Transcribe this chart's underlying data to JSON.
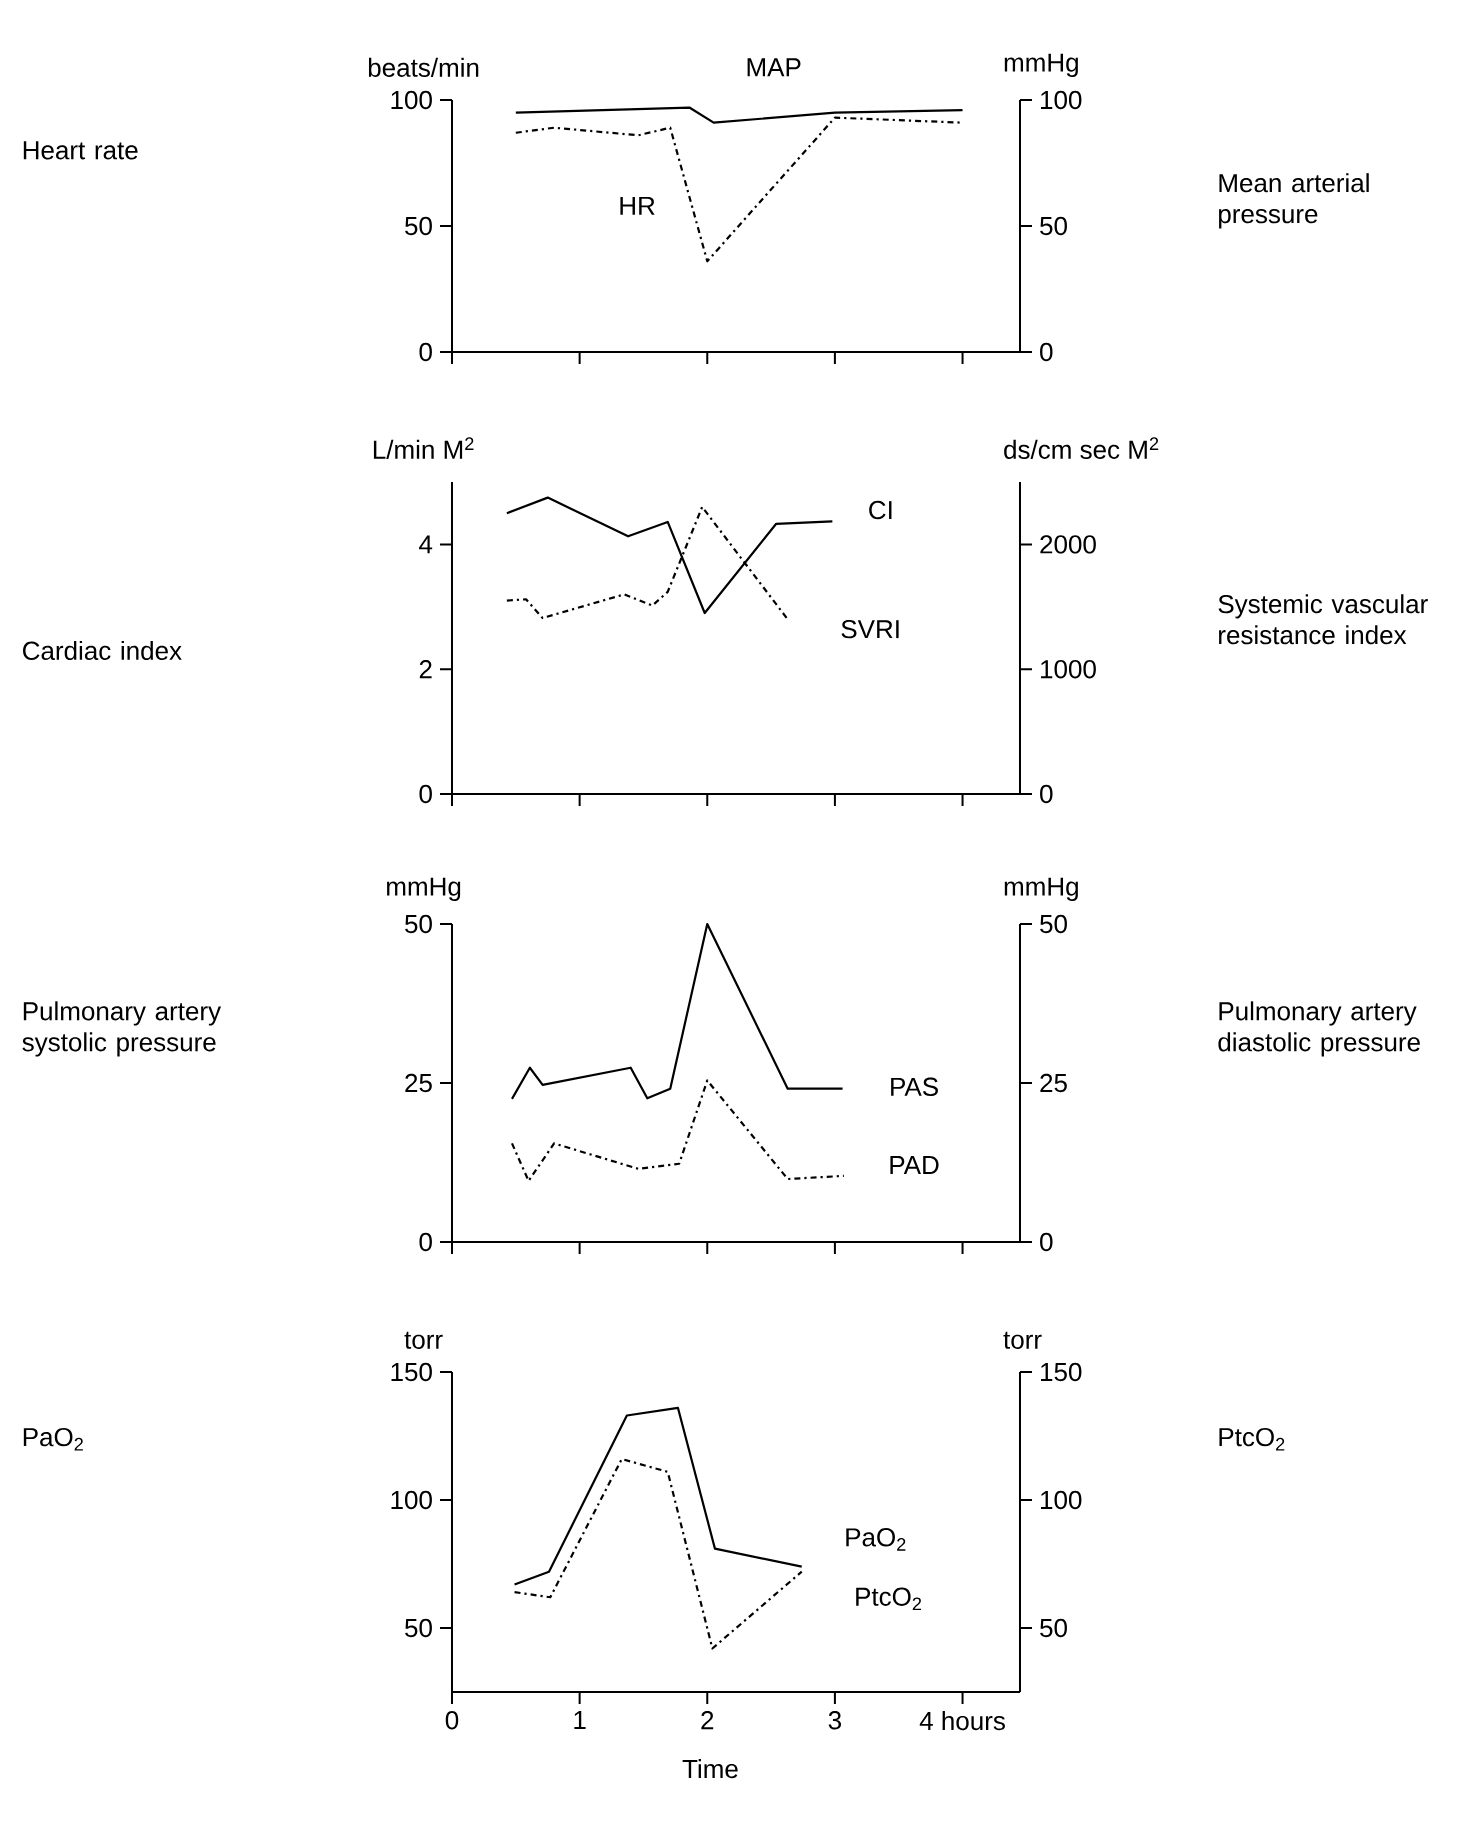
{
  "chart_data": [
    {
      "type": "line",
      "ylabel": "Heart rate",
      "y2label": "Mean arterial pressure",
      "annotations": [
        "beats/min",
        "mmHg"
      ],
      "tick_labels": "y",
      "xlim": [
        0,
        4.45
      ],
      "ylim": [
        0,
        100
      ],
      "yticks": [
        0,
        50,
        100
      ],
      "y2lim": [
        0,
        100
      ],
      "y2ticks": [
        0,
        50,
        100
      ],
      "series": [
        {
          "name": "HR",
          "color": "#000000",
          "line_style": "dashed",
          "x": [
            0.5,
            0.8,
            1.46,
            1.71,
            2.0,
            3.0,
            4.0
          ],
          "values": [
            87,
            89,
            86,
            89,
            36,
            93,
            91
          ]
        },
        {
          "name": "MAP",
          "color": "#000000",
          "line_style": "solid",
          "axis": "y2",
          "x": [
            0.5,
            1.86,
            2.05,
            3.0,
            4.0
          ],
          "values": [
            95,
            97,
            91,
            95,
            96
          ]
        }
      ]
    },
    {
      "type": "line",
      "ylabel": "Cardiac index",
      "y2label": "Systemic vascular resistance index",
      "annotations": [
        "L/min M$^{2}$",
        "ds/cm sec M$^{2}$"
      ],
      "tick_labels": "y",
      "xlim": [
        0,
        4.45
      ],
      "ylim": [
        0,
        5
      ],
      "yticks": [
        0,
        2,
        4
      ],
      "y2lim": [
        0,
        2500
      ],
      "y2ticks": [
        0,
        1000,
        2000
      ],
      "series": [
        {
          "name": "CI",
          "color": "#000000",
          "line_style": "solid",
          "x": [
            0.43,
            0.75,
            1.38,
            1.69,
            1.98,
            2.54,
            2.98
          ],
          "values": [
            4.5,
            4.75,
            4.13,
            4.36,
            2.9,
            4.33,
            4.37
          ]
        },
        {
          "name": "SVRI",
          "color": "#000000",
          "line_style": "dashed",
          "axis": "y2",
          "x": [
            0.43,
            0.58,
            0.71,
            1.35,
            1.57,
            1.69,
            1.96,
            2.63
          ],
          "values": [
            1550,
            1560,
            1410,
            1600,
            1510,
            1620,
            2300,
            1400
          ]
        }
      ]
    },
    {
      "type": "line",
      "ylabel": "Pulmonary artery systolic pressure",
      "y2label": "Pulmonary artery diastolic pressure",
      "annotations": [
        "mmHg",
        "mmHg"
      ],
      "tick_labels": "y",
      "xlim": [
        0,
        4.45
      ],
      "ylim": [
        0,
        50
      ],
      "yticks": [
        0,
        25,
        50
      ],
      "y2lim": [
        0,
        50
      ],
      "y2ticks": [
        0,
        25,
        50
      ],
      "series": [
        {
          "name": "PAS",
          "color": "#000000",
          "line_style": "solid",
          "x": [
            0.47,
            0.61,
            0.71,
            1.4,
            1.53,
            1.71,
            2.0,
            2.63,
            3.06
          ],
          "values": [
            22.5,
            27.4,
            24.7,
            27.4,
            22.6,
            24.1,
            50,
            24.1,
            24.1
          ]
        },
        {
          "name": "PAD",
          "color": "#000000",
          "line_style": "dashed",
          "axis": "y2",
          "x": [
            0.47,
            0.6,
            0.8,
            1.46,
            1.78,
            2.0,
            2.63,
            3.07
          ],
          "values": [
            15.5,
            9.6,
            15.5,
            11.5,
            12.3,
            25.4,
            9.9,
            10.4
          ]
        }
      ]
    },
    {
      "type": "line",
      "ylabel": "PaO$_{2}$",
      "y2label": "PtcO$_{2}$",
      "xlabel": "Time",
      "annotations": [
        "torr",
        "torr"
      ],
      "xlim": [
        0,
        4.45
      ],
      "xticks": [
        0,
        1,
        2,
        3,
        {
          "value": 4,
          "label": "4 hours"
        }
      ],
      "ylim": [
        25,
        150
      ],
      "yticks": [
        50,
        100,
        150
      ],
      "y2lim": [
        25,
        150
      ],
      "y2ticks": [
        50,
        100,
        150
      ],
      "series": [
        {
          "name": "PaO$_{2}$",
          "color": "#000000",
          "line_style": "solid",
          "x": [
            0.49,
            0.76,
            1.37,
            1.77,
            2.06,
            2.74
          ],
          "values": [
            67,
            72,
            133,
            136,
            81,
            74
          ]
        },
        {
          "name": "PtcO$_{2}$",
          "color": "#000000",
          "line_style": "dashed",
          "axis": "y2",
          "x": [
            0.49,
            0.77,
            1.33,
            1.69,
            2.04,
            2.74
          ],
          "values": [
            64,
            62,
            116,
            111,
            42,
            72
          ]
        }
      ]
    }
  ]
}
